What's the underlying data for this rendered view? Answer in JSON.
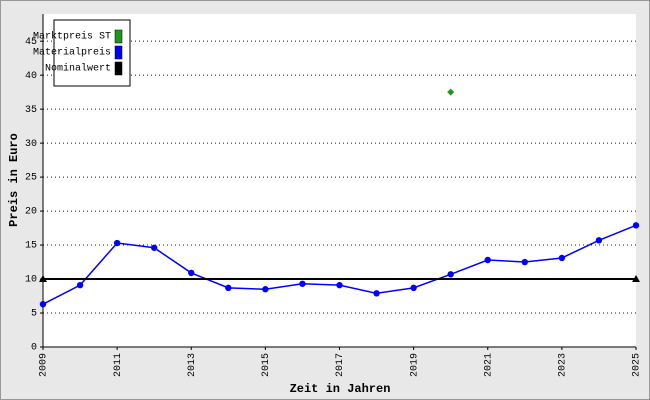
{
  "chart_data": {
    "type": "line",
    "x_label": "Zeit in Jahren",
    "y_label": "Preis in Euro",
    "xlim": [
      2009,
      2025
    ],
    "xticks": [
      2009,
      2011,
      2013,
      2015,
      2017,
      2019,
      2021,
      2023,
      2025
    ],
    "ylim": [
      0,
      49
    ],
    "yticks": [
      0,
      5,
      10,
      15,
      20,
      25,
      30,
      35,
      40,
      45
    ],
    "grid": true,
    "legend": "top-left",
    "series": [
      {
        "name": "Marktpreis ST",
        "color": "#1a9a1a",
        "marker": "diamond",
        "x": [
          2020
        ],
        "values": [
          37.5
        ]
      },
      {
        "name": "Materialpreis",
        "color": "#0000ff",
        "marker": "circle",
        "x": [
          2009,
          2010,
          2011,
          2012,
          2013,
          2014,
          2015,
          2016,
          2017,
          2018,
          2019,
          2020,
          2021,
          2022,
          2023,
          2024,
          2025
        ],
        "values": [
          6.3,
          9.1,
          15.3,
          14.6,
          10.9,
          8.7,
          8.5,
          9.3,
          9.1,
          7.9,
          8.7,
          10.7,
          12.8,
          12.5,
          13.1,
          15.7,
          17.9
        ]
      },
      {
        "name": "Nominalwert",
        "color": "#000000",
        "marker": "triangle",
        "x": [
          2009,
          2025
        ],
        "values": [
          10,
          10
        ]
      }
    ]
  }
}
